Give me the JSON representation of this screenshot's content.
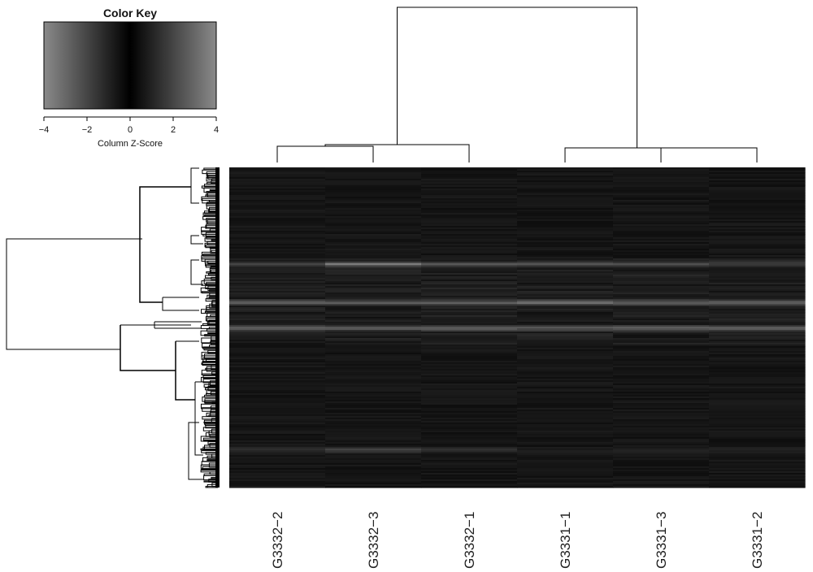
{
  "chart_data": {
    "type": "heatmap",
    "color_key": {
      "title": "Color Key",
      "xlabel": "Column Z-Score",
      "range": [
        -4,
        4
      ],
      "ticks": [
        -4,
        -2,
        0,
        2,
        4
      ],
      "tick_labels": [
        "−4",
        "−2",
        "0",
        "2",
        "4"
      ],
      "colors": {
        "low": "#8a8a8a",
        "mid": "#000000",
        "high": "#8a8a8a"
      }
    },
    "columns": [
      "G3332−2",
      "G3332−3",
      "G3332−1",
      "G3331−1",
      "G3331−3",
      "G3331−2"
    ],
    "column_dendrogram": {
      "merges": [
        {
          "a": "G3332−2",
          "b": "G3332−3",
          "height": 0.1
        },
        {
          "a": "G3331−3",
          "b": "G3331−2",
          "height": 0.06
        },
        {
          "a": "[G3332−2,G3332−3]",
          "b": "G3332−1",
          "height": 0.08
        },
        {
          "a": "G3331−1",
          "b": "[G3331−3,G3331−2]",
          "height": 0.09
        },
        {
          "a": "G3332 group",
          "b": "G3331 group",
          "height": 1.0
        }
      ]
    },
    "row_dendrogram": "hierarchical clustering of all rows (dense leaves)",
    "bands": [
      {
        "row_fraction": 0.3,
        "values": [
          0.8,
          1.6,
          1.0,
          0.9,
          0.8,
          0.5
        ]
      },
      {
        "row_fraction": 0.42,
        "values": [
          1.2,
          1.2,
          1.1,
          1.5,
          1.2,
          1.3
        ]
      },
      {
        "row_fraction": 0.5,
        "values": [
          1.4,
          1.3,
          1.3,
          1.2,
          1.3,
          1.2
        ]
      },
      {
        "row_fraction": 0.88,
        "values": [
          0.4,
          0.9,
          0.5,
          0.2,
          0.3,
          0.3
        ]
      }
    ]
  }
}
